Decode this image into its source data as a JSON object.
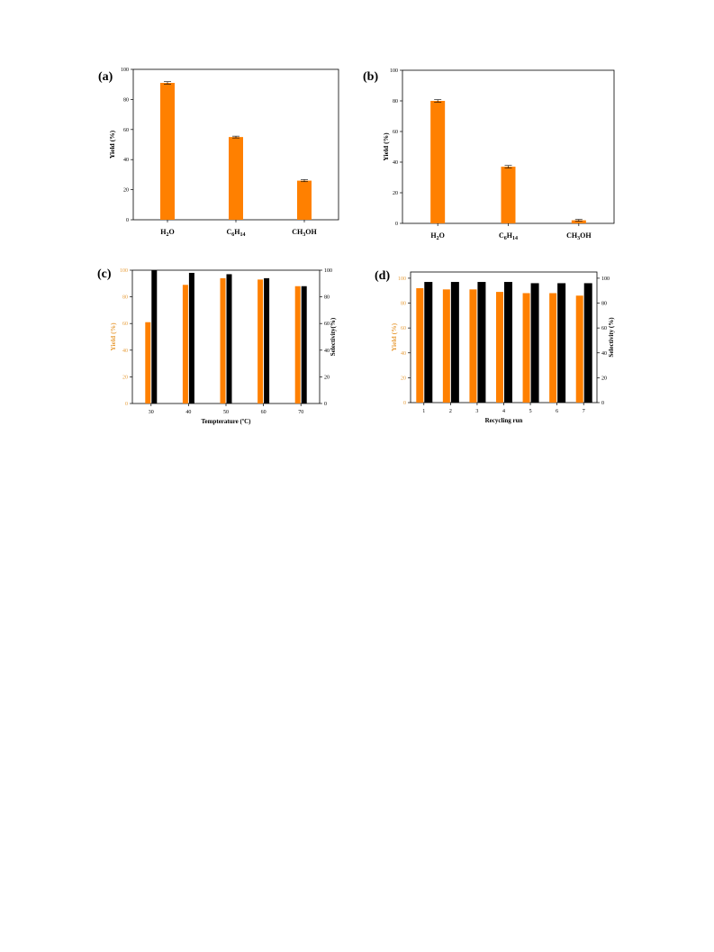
{
  "colors": {
    "yield": "#FF8000",
    "selectivity": "#000000",
    "yield_axis": "#E8A040"
  },
  "chart_data": [
    {
      "id": "a",
      "panel_label": "(a)",
      "type": "bar",
      "categories": [
        {
          "base": "H",
          "sub1": "2",
          "mid": "O",
          "sub2": ""
        },
        {
          "base": "C",
          "sub1": "6",
          "mid": "H",
          "sub2": "14"
        },
        {
          "base": "CH",
          "sub1": "3",
          "mid": "OH",
          "sub2": ""
        }
      ],
      "series": [
        {
          "values": [
            91,
            55,
            26
          ],
          "errors": [
            0.8,
            0.6,
            0.7
          ],
          "color": "#FF8000"
        }
      ],
      "ylabel": "Yield (%)",
      "ylim": [
        0,
        100
      ],
      "yticks": [
        "0",
        "20",
        "40",
        "60",
        "80",
        "100"
      ]
    },
    {
      "id": "b",
      "panel_label": "(b)",
      "type": "bar",
      "categories": [
        {
          "base": "H",
          "sub1": "2",
          "mid": "O",
          "sub2": ""
        },
        {
          "base": "C",
          "sub1": "6",
          "mid": "H",
          "sub2": "14"
        },
        {
          "base": "CH",
          "sub1": "3",
          "mid": "OH",
          "sub2": ""
        }
      ],
      "series": [
        {
          "values": [
            80,
            37,
            2
          ],
          "errors": [
            0.8,
            0.8,
            0.6
          ],
          "color": "#FF8000"
        }
      ],
      "ylabel": "Yield (%)",
      "ylim": [
        0,
        100
      ],
      "yticks": [
        "0",
        "20",
        "40",
        "60",
        "80",
        "100"
      ]
    },
    {
      "id": "c",
      "panel_label": "(c)",
      "type": "bar",
      "categories": [
        "30",
        "40",
        "50",
        "60",
        "70"
      ],
      "series": [
        {
          "values": [
            61,
            89,
            94,
            93,
            88
          ],
          "color": "#FF8000",
          "axis": "left"
        },
        {
          "values": [
            100,
            98,
            97,
            94,
            88
          ],
          "color": "#000000",
          "axis": "right"
        }
      ],
      "xlabel": "Tempterature (ºC)",
      "ylabel": "Yield (%)",
      "y2label": "Selectivity(%)",
      "ylim": [
        0,
        100
      ],
      "yticks": [
        "0",
        "20",
        "40",
        "60",
        "80",
        "100"
      ],
      "y2ticks": [
        "0",
        "20",
        "40",
        "60",
        "80",
        "100"
      ]
    },
    {
      "id": "d",
      "panel_label": "(d)",
      "type": "bar",
      "categories": [
        "1",
        "2",
        "3",
        "4",
        "5",
        "6",
        "7"
      ],
      "series": [
        {
          "values": [
            92,
            91,
            91,
            89,
            88,
            88,
            86
          ],
          "color": "#FF8000",
          "axis": "left"
        },
        {
          "values": [
            97,
            97,
            97,
            97,
            96,
            96,
            96
          ],
          "color": "#000000",
          "axis": "right"
        }
      ],
      "xlabel": "Recycling run",
      "ylabel": "Yield (%)",
      "y2label": "Selectivity (%)",
      "ylim": [
        0,
        105
      ],
      "yticks": [
        "0",
        "20",
        "40",
        "60",
        "80",
        "100"
      ],
      "y2ticks": [
        "0",
        "20",
        "40",
        "60",
        "80",
        "100"
      ]
    }
  ]
}
